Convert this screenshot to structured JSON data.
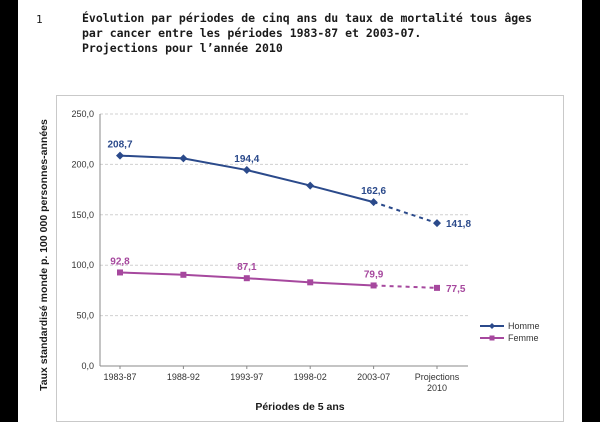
{
  "figure": {
    "number": "1",
    "title_lines": [
      "Évolution par périodes de cinq ans du taux de mortalité tous âges",
      "par cancer entre les périodes 1983-87 et 2003-07.",
      "Projections pour l’année 2010"
    ]
  },
  "colors": {
    "homme": "#2b4a8b",
    "femme": "#a6489e",
    "grid": "#d0d0d0"
  },
  "chart_data": {
    "type": "line",
    "title": "",
    "xlabel": "Périodes de 5 ans",
    "ylabel": "Taux standardisé monde p. 100 000 personnes-années",
    "categories": [
      "1983-87",
      "1988-92",
      "1993-97",
      "1998-02",
      "2003-07",
      "Projections 2010"
    ],
    "ylim": [
      0,
      250
    ],
    "yticks": [
      "0,0",
      "50,0",
      "100,0",
      "150,0",
      "200,0",
      "250,0"
    ],
    "grid": true,
    "legend_position": "right",
    "series": [
      {
        "name": "Homme",
        "marker": "diamond",
        "values": [
          208.7,
          206,
          194.4,
          179,
          162.6,
          141.8
        ],
        "labels": [
          "208,7",
          "",
          "194,4",
          "",
          "162,6",
          "141,8"
        ],
        "dashed_last_segment": true
      },
      {
        "name": "Femme",
        "marker": "square",
        "values": [
          92.8,
          90.5,
          87.1,
          83,
          79.9,
          77.5
        ],
        "labels": [
          "92,8",
          "",
          "87,1",
          "",
          "79,9",
          "77,5"
        ],
        "dashed_last_segment": true
      }
    ]
  }
}
